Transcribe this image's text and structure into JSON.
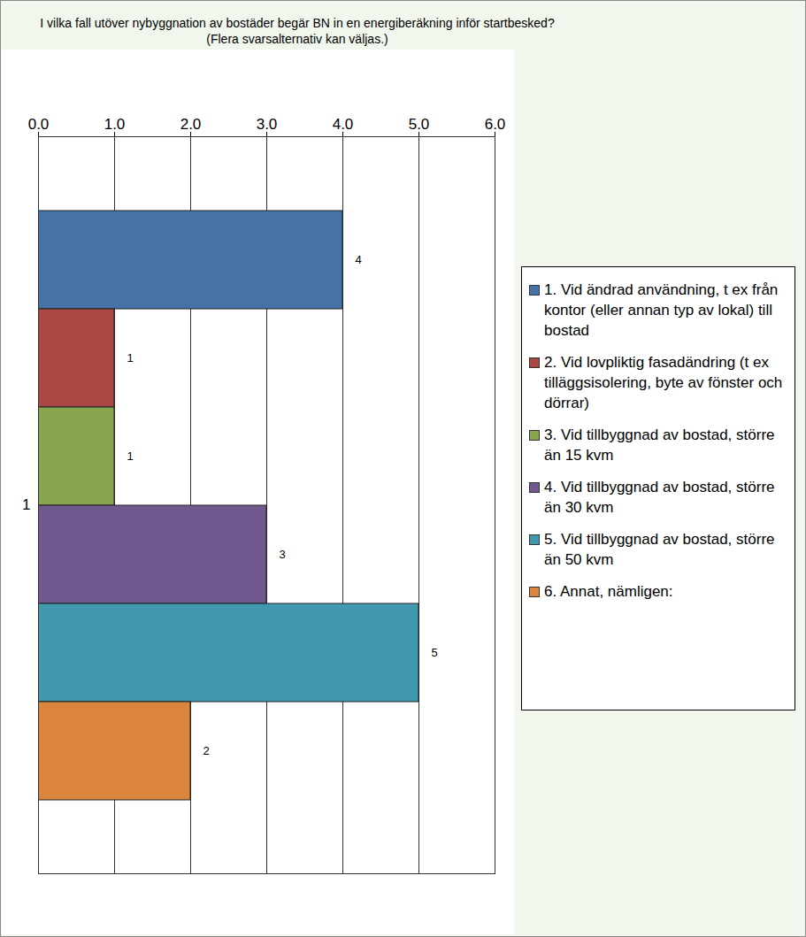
{
  "chart_data": {
    "type": "bar",
    "title": "I vilka fall utöver nybyggnation av bostäder begär BN in en energiberäkning inför startbesked?",
    "subtitle": "(Flera svarsalternativ kan väljas.)",
    "orientation": "horizontal",
    "categories": [
      "1"
    ],
    "series": [
      {
        "name": "1. Vid ändrad användning, t ex från kontor (eller annan typ av lokal) till bostad",
        "color": "#4572a7",
        "values": [
          4
        ]
      },
      {
        "name": "2. Vid lovpliktig fasadändring (t ex tilläggsisolering, byte av fönster och dörrar)",
        "color": "#aa4643",
        "values": [
          1
        ]
      },
      {
        "name": "3. Vid tillbyggnad av bostad, större än 15 kvm",
        "color": "#89a54e",
        "values": [
          1
        ]
      },
      {
        "name": "4. Vid tillbyggnad av bostad, större än 30 kvm",
        "color": "#71588f",
        "values": [
          3
        ]
      },
      {
        "name": "5. Vid tillbyggnad av bostad, större än 50 kvm",
        "color": "#4198af",
        "values": [
          5
        ]
      },
      {
        "name": "6. Annat, nämligen:",
        "color": "#db843d",
        "values": [
          2
        ]
      }
    ],
    "xlim": [
      0,
      6
    ],
    "xticks": [
      0,
      1,
      2,
      3,
      4,
      5,
      6
    ],
    "grid": true,
    "data_labels": true,
    "legend": "right"
  }
}
